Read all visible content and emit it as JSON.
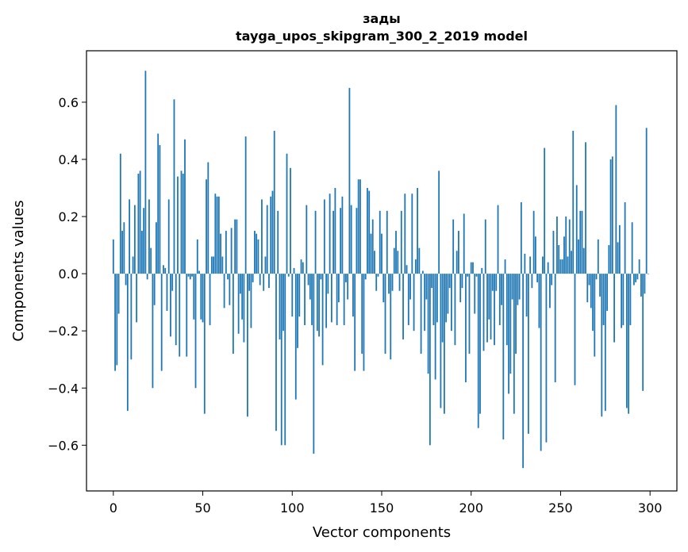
{
  "colors": {
    "bar": "#1f77b4",
    "axis": "#000000",
    "background": "#ffffff"
  },
  "chart_data": {
    "type": "bar",
    "title": "зады",
    "subtitle": "tayga_upos_skipgram_300_2_2019 model",
    "xlabel": "Vector components",
    "ylabel": "Components values",
    "xlim": [
      -15,
      315
    ],
    "ylim": [
      -0.76,
      0.78
    ],
    "xticks": [
      0,
      50,
      100,
      150,
      200,
      250,
      300
    ],
    "yticks": [
      -0.6,
      -0.4,
      -0.2,
      0.0,
      0.2,
      0.4,
      0.6
    ],
    "ytick_labels": [
      "−0.6",
      "−0.4",
      "−0.2",
      "0.0",
      "0.2",
      "0.4",
      "0.6"
    ],
    "values": [
      0.12,
      -0.34,
      -0.32,
      -0.14,
      0.42,
      0.15,
      0.18,
      -0.04,
      -0.48,
      0.26,
      -0.3,
      0.06,
      0.24,
      -0.17,
      0.35,
      0.36,
      0.15,
      0.23,
      0.71,
      -0.02,
      0.26,
      0.09,
      -0.4,
      -0.11,
      0.18,
      0.49,
      0.45,
      -0.34,
      0.03,
      0.02,
      -0.13,
      0.26,
      -0.22,
      -0.06,
      0.61,
      -0.25,
      0.34,
      -0.29,
      0.36,
      0.35,
      0.47,
      -0.29,
      -0.01,
      -0.02,
      -0.01,
      -0.16,
      -0.4,
      0.12,
      0.01,
      -0.16,
      -0.17,
      -0.49,
      0.33,
      0.39,
      -0.18,
      0.06,
      0.06,
      0.28,
      0.27,
      0.27,
      0.14,
      0.06,
      -0.12,
      0.15,
      -0.02,
      -0.11,
      0.16,
      -0.28,
      0.19,
      0.19,
      -0.21,
      -0.07,
      -0.16,
      -0.24,
      0.48,
      -0.5,
      -0.06,
      -0.19,
      -0.03,
      0.15,
      0.14,
      0.12,
      -0.04,
      0.26,
      -0.06,
      0.06,
      0.24,
      -0.05,
      0.27,
      0.29,
      0.5,
      -0.55,
      0.22,
      -0.23,
      -0.6,
      -0.2,
      -0.6,
      0.42,
      -0.01,
      0.37,
      -0.15,
      0.02,
      -0.44,
      -0.26,
      -0.15,
      0.05,
      0.04,
      -0.18,
      0.24,
      -0.04,
      -0.09,
      -0.18,
      -0.63,
      0.22,
      -0.2,
      -0.22,
      -0.02,
      -0.32,
      0.26,
      -0.19,
      -0.07,
      0.28,
      -0.17,
      0.22,
      0.3,
      -0.18,
      -0.1,
      0.23,
      0.27,
      -0.18,
      -0.03,
      -0.09,
      0.65,
      0.24,
      -0.15,
      -0.34,
      0.23,
      0.33,
      0.33,
      -0.28,
      -0.34,
      -0.02,
      0.3,
      0.29,
      0.14,
      0.19,
      0.08,
      -0.06,
      -0.01,
      0.22,
      0.14,
      -0.1,
      -0.28,
      0.22,
      -0.07,
      -0.3,
      -0.06,
      0.09,
      0.15,
      0.08,
      -0.06,
      0.22,
      -0.23,
      0.28,
      0.03,
      -0.18,
      -0.09,
      0.28,
      -0.2,
      0.05,
      0.3,
      0.09,
      -0.28,
      0.01,
      -0.2,
      -0.09,
      -0.35,
      -0.6,
      -0.05,
      -0.18,
      -0.37,
      -0.17,
      0.36,
      -0.47,
      -0.24,
      -0.49,
      -0.17,
      -0.14,
      -0.05,
      -0.2,
      0.19,
      -0.25,
      0.08,
      0.15,
      -0.1,
      -0.05,
      0.21,
      -0.38,
      -0.01,
      -0.28,
      0.04,
      0.04,
      -0.14,
      -0.01,
      -0.54,
      -0.49,
      0.02,
      -0.27,
      0.19,
      -0.24,
      -0.16,
      -0.23,
      -0.06,
      -0.25,
      -0.06,
      0.24,
      -0.18,
      -0.11,
      -0.58,
      0.05,
      -0.25,
      -0.42,
      -0.35,
      -0.09,
      -0.49,
      -0.28,
      -0.11,
      -0.09,
      0.25,
      -0.68,
      0.07,
      -0.15,
      -0.56,
      0.06,
      -0.05,
      0.22,
      0.13,
      -0.03,
      -0.19,
      -0.62,
      0.06,
      0.44,
      -0.59,
      0.04,
      -0.12,
      -0.04,
      0.15,
      -0.38,
      0.2,
      0.1,
      0.05,
      0.05,
      0.13,
      0.2,
      0.06,
      0.19,
      0.08,
      0.5,
      -0.39,
      0.31,
      0.12,
      0.22,
      0.22,
      0.09,
      0.46,
      -0.1,
      -0.04,
      -0.12,
      -0.2,
      -0.29,
      -0.02,
      0.12,
      -0.08,
      -0.5,
      -0.18,
      -0.48,
      -0.13,
      0.1,
      0.4,
      0.41,
      -0.24,
      0.59,
      0.11,
      0.17,
      -0.19,
      -0.18,
      0.25,
      -0.47,
      -0.49,
      -0.18,
      0.18,
      -0.04,
      -0.03,
      -0.02,
      0.05,
      -0.08,
      -0.41,
      -0.07,
      0.51,
      0.0
    ]
  }
}
